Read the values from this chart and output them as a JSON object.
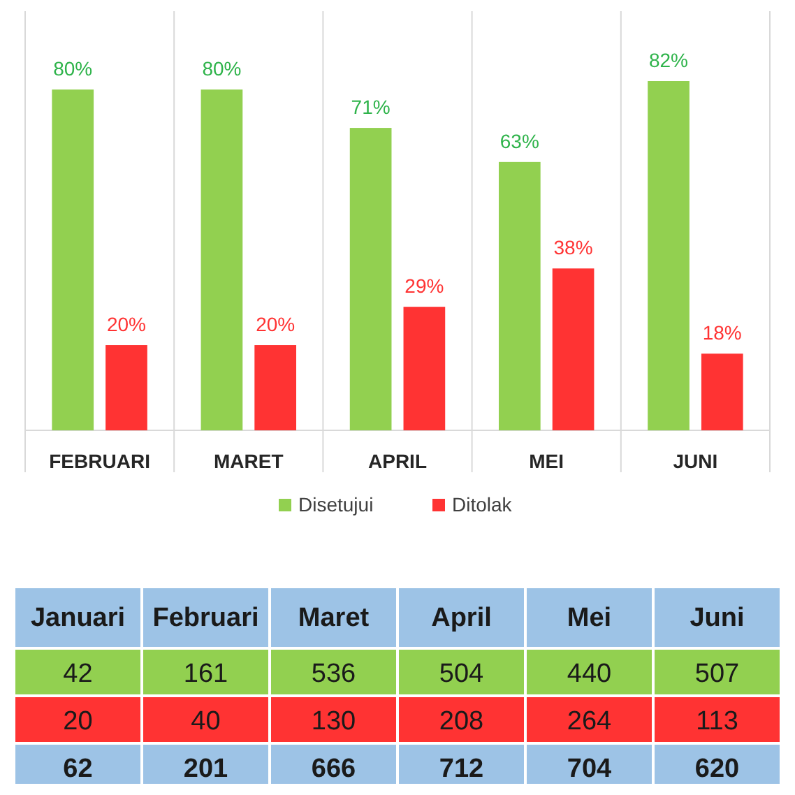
{
  "chart_data": [
    {
      "type": "bar",
      "categories": [
        "FEBRUARI",
        "MARET",
        "APRIL",
        "MEI",
        "JUNI"
      ],
      "legend": "bottom",
      "series": [
        {
          "name": "Disetujui",
          "color": "#92d050",
          "values": [
            80,
            80,
            71,
            63,
            82
          ],
          "value_labels": [
            "80%",
            "80%",
            "71%",
            "63%",
            "82%"
          ]
        },
        {
          "name": "Ditolak",
          "color": "#ff3333",
          "values": [
            20,
            20,
            29,
            38,
            18
          ],
          "value_labels": [
            "20%",
            "20%",
            "29%",
            "38%",
            "18%"
          ]
        }
      ]
    },
    {
      "type": "other",
      "data_labels": true,
      "categories": [
        "Januari",
        "Februari",
        "Maret",
        "April",
        "Mei",
        "Juni"
      ],
      "series": [
        {
          "color": "#92d050",
          "values": [
            42,
            161,
            536,
            504,
            440,
            507
          ]
        },
        {
          "color": "#ff3333",
          "values": [
            20,
            40,
            130,
            208,
            264,
            113
          ]
        },
        {
          "color": "#9dc3e6",
          "values": [
            62,
            201,
            666,
            712,
            704,
            620
          ]
        }
      ]
    }
  ]
}
